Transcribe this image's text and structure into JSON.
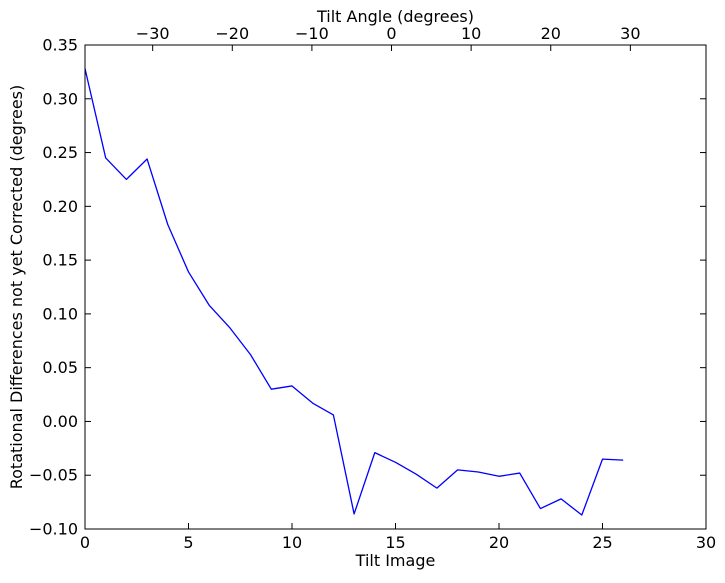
{
  "chart_data": {
    "type": "line",
    "xlabel": "Tilt Image",
    "ylabel": "Rotational Differences not yet Corrected (degrees)",
    "top_xlabel": "Tilt Angle (degrees)",
    "xlim": [
      0,
      30
    ],
    "ylim": [
      -0.1,
      0.35
    ],
    "top_xlim": [
      -38.5,
      39.5
    ],
    "x_ticks": [
      0,
      5,
      10,
      15,
      20,
      25,
      30
    ],
    "x_tick_labels": [
      "0",
      "5",
      "10",
      "15",
      "20",
      "25",
      "30"
    ],
    "y_ticks": [
      -0.1,
      -0.05,
      0.0,
      0.05,
      0.1,
      0.15,
      0.2,
      0.25,
      0.3,
      0.35
    ],
    "y_tick_labels": [
      "−0.10",
      "−0.05",
      "0.00",
      "0.05",
      "0.10",
      "0.15",
      "0.20",
      "0.25",
      "0.30",
      "0.35"
    ],
    "top_ticks": [
      -30,
      -20,
      -10,
      0,
      10,
      20,
      30
    ],
    "top_tick_labels": [
      "−30",
      "−20",
      "−10",
      "0",
      "10",
      "20",
      "30"
    ],
    "grid": false,
    "line_color": "#0000ff",
    "series": [
      {
        "x": [
          0,
          1,
          2,
          3,
          4,
          5,
          6,
          7,
          8,
          9,
          10,
          11,
          12,
          13,
          14,
          15,
          16,
          17,
          18,
          19,
          20,
          21,
          22,
          23,
          24,
          25,
          26
        ],
        "values": [
          0.328,
          0.245,
          0.225,
          0.244,
          0.183,
          0.139,
          0.108,
          0.087,
          0.062,
          0.03,
          0.033,
          0.017,
          0.006,
          -0.086,
          -0.029,
          -0.038,
          -0.049,
          -0.062,
          -0.045,
          -0.047,
          -0.051,
          -0.048,
          -0.081,
          -0.072,
          -0.087,
          -0.035,
          -0.036
        ]
      }
    ]
  }
}
